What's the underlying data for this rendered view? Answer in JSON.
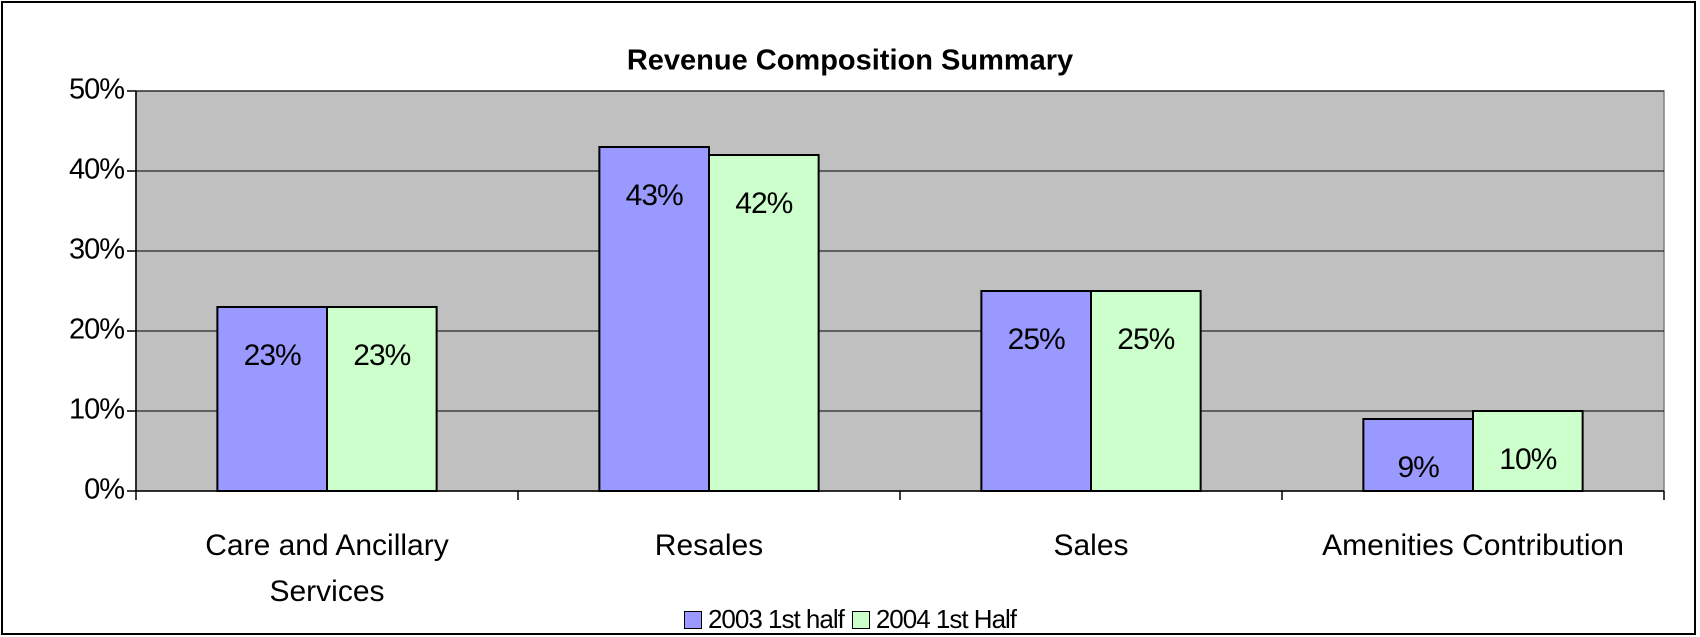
{
  "chart_data": {
    "type": "bar",
    "title": "Revenue Composition Summary",
    "categories": [
      "Care and Ancillary Services",
      "Resales",
      "Sales",
      "Amenities Contribution"
    ],
    "series": [
      {
        "name": "2003 1st half",
        "color": "#9999ff",
        "values": [
          23,
          43,
          25,
          9
        ],
        "value_labels": [
          "23%",
          "43%",
          "25%",
          "9%"
        ]
      },
      {
        "name": "2004 1st Half",
        "color": "#ccffcc",
        "values": [
          23,
          42,
          25,
          10
        ],
        "value_labels": [
          "23%",
          "42%",
          "25%",
          "10%"
        ]
      }
    ],
    "ylim": [
      0,
      50
    ],
    "yticks": [
      {
        "value": 0,
        "label": "0%"
      },
      {
        "value": 10,
        "label": "10%"
      },
      {
        "value": 20,
        "label": "20%"
      },
      {
        "value": 30,
        "label": "30%"
      },
      {
        "value": 40,
        "label": "40%"
      },
      {
        "value": 50,
        "label": "50%"
      }
    ],
    "grid": true,
    "legend": "bottom"
  }
}
